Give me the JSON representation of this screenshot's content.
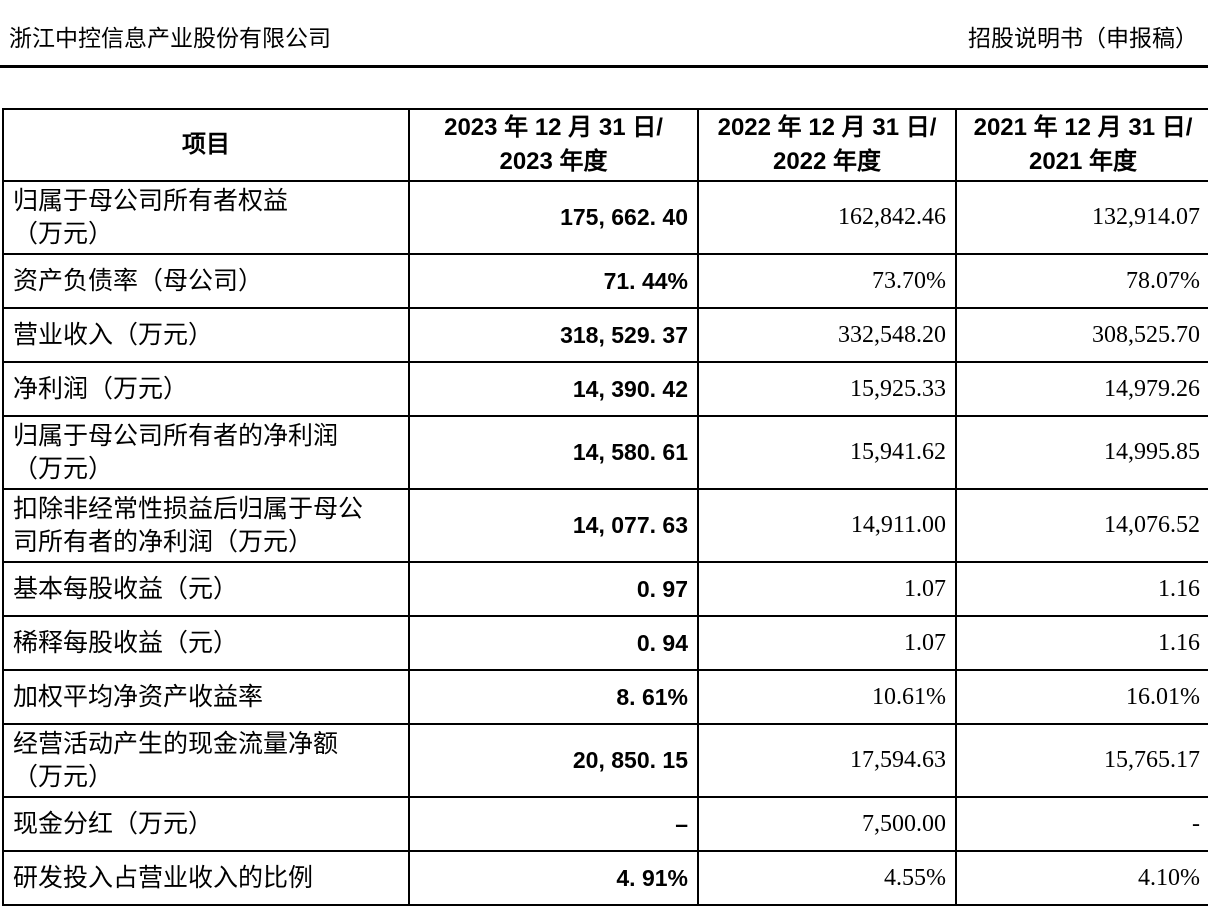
{
  "page_header": {
    "company": "浙江中控信息产业股份有限公司",
    "doc_title": "招股说明书（申报稿）"
  },
  "colors": {
    "text": "#000000",
    "border": "#000000",
    "background": "#ffffff"
  },
  "table": {
    "columns": [
      {
        "label": "项目"
      },
      {
        "label": "2023 年 12 月 31 日/\n2023 年度"
      },
      {
        "label": "2022 年 12 月 31 日/\n2022 年度"
      },
      {
        "label": "2021 年 12 月 31 日/\n2021 年度"
      }
    ],
    "rows": [
      {
        "label": "归属于母公司所有者权益\n（万元）",
        "y2023": "175, 662. 40",
        "y2022": "162,842.46",
        "y2021": "132,914.07"
      },
      {
        "label": "资产负债率（母公司）",
        "y2023": "71. 44%",
        "y2022": "73.70%",
        "y2021": "78.07%"
      },
      {
        "label": "营业收入（万元）",
        "y2023": "318, 529. 37",
        "y2022": "332,548.20",
        "y2021": "308,525.70"
      },
      {
        "label": "净利润（万元）",
        "y2023": "14, 390. 42",
        "y2022": "15,925.33",
        "y2021": "14,979.26"
      },
      {
        "label": "归属于母公司所有者的净利润\n（万元）",
        "y2023": "14, 580. 61",
        "y2022": "15,941.62",
        "y2021": "14,995.85"
      },
      {
        "label": "扣除非经常性损益后归属于母公\n司所有者的净利润（万元）",
        "y2023": "14, 077. 63",
        "y2022": "14,911.00",
        "y2021": "14,076.52"
      },
      {
        "label": "基本每股收益（元）",
        "y2023": "0. 97",
        "y2022": "1.07",
        "y2021": "1.16"
      },
      {
        "label": "稀释每股收益（元）",
        "y2023": "0. 94",
        "y2022": "1.07",
        "y2021": "1.16"
      },
      {
        "label": "加权平均净资产收益率",
        "y2023": "8. 61%",
        "y2022": "10.61%",
        "y2021": "16.01%"
      },
      {
        "label": "经营活动产生的现金流量净额\n（万元）",
        "y2023": "20, 850. 15",
        "y2022": "17,594.63",
        "y2021": "15,765.17"
      },
      {
        "label": "现金分红（万元）",
        "y2023": "–",
        "y2022": "7,500.00",
        "y2021": "-"
      },
      {
        "label": "研发投入占营业收入的比例",
        "y2023": "4. 91%",
        "y2022": "4.55%",
        "y2021": "4.10%"
      }
    ]
  }
}
